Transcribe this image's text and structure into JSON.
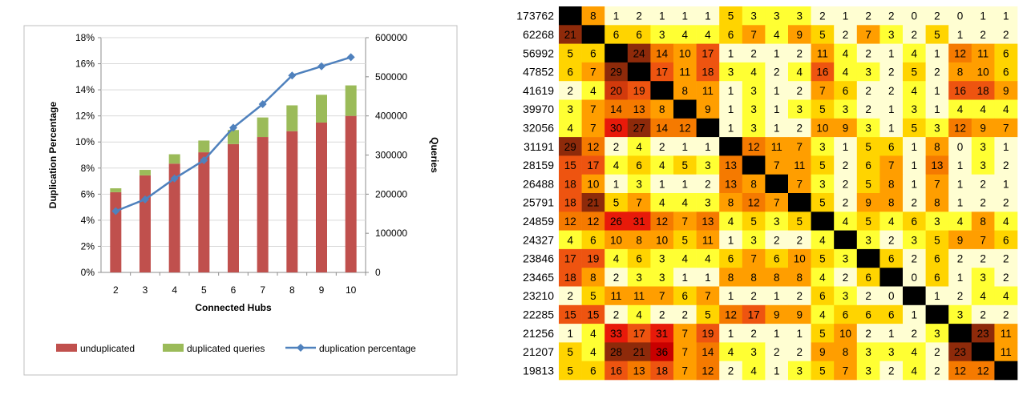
{
  "chart_data": [
    {
      "type": "bar",
      "stacked": true,
      "title": "",
      "xlabel": "Connected Hubs",
      "ylabel": "Duplication Percentage",
      "y2label": "Queries",
      "categories": [
        "2",
        "3",
        "4",
        "5",
        "6",
        "7",
        "8",
        "9",
        "10"
      ],
      "ylim": [
        0,
        0.18
      ],
      "y2lim": [
        0,
        600000
      ],
      "yticks": [
        "0%",
        "2%",
        "4%",
        "6%",
        "8%",
        "10%",
        "12%",
        "14%",
        "16%",
        "18%"
      ],
      "y2ticks": [
        "0",
        "100000",
        "200000",
        "300000",
        "400000",
        "500000",
        "600000"
      ],
      "series": [
        {
          "name": "unduplicated",
          "type": "bar",
          "axis": "right",
          "color": "#c0504d",
          "values": [
            205000,
            248000,
            278000,
            307000,
            328000,
            346000,
            361000,
            383000,
            400000
          ]
        },
        {
          "name": "duplicated queries",
          "type": "bar",
          "axis": "right",
          "color": "#9bbb59",
          "values": [
            10000,
            14000,
            24000,
            30000,
            36000,
            50000,
            66000,
            71000,
            78000
          ]
        },
        {
          "name": "duplication percentage",
          "type": "line",
          "axis": "left",
          "color": "#4f81bd",
          "values": [
            0.047,
            0.056,
            0.072,
            0.086,
            0.111,
            0.129,
            0.151,
            0.158,
            0.165
          ]
        }
      ],
      "legend": "bottom"
    },
    {
      "type": "heatmap",
      "rows": [
        "173762",
        "62268",
        "56992",
        "47852",
        "41619",
        "39970",
        "32056",
        "31191",
        "28159",
        "26488",
        "25791",
        "24859",
        "24327",
        "23846",
        "23465",
        "23210",
        "22285",
        "21256",
        "21207",
        "19813"
      ],
      "cells": [
        [
          null,
          8,
          1,
          2,
          1,
          1,
          1,
          5,
          3,
          3,
          3,
          2,
          1,
          2,
          2,
          0,
          2,
          0,
          1,
          1
        ],
        [
          21,
          null,
          6,
          6,
          3,
          4,
          4,
          6,
          7,
          4,
          9,
          5,
          2,
          7,
          3,
          2,
          5,
          1,
          2,
          2
        ],
        [
          5,
          6,
          null,
          24,
          14,
          10,
          17,
          1,
          2,
          1,
          2,
          11,
          4,
          2,
          1,
          4,
          1,
          12,
          11,
          6
        ],
        [
          6,
          7,
          29,
          null,
          17,
          11,
          18,
          3,
          4,
          2,
          4,
          16,
          4,
          3,
          2,
          5,
          2,
          8,
          10,
          6
        ],
        [
          2,
          4,
          20,
          19,
          null,
          8,
          11,
          1,
          3,
          1,
          2,
          7,
          6,
          2,
          2,
          4,
          1,
          16,
          18,
          9
        ],
        [
          3,
          7,
          14,
          13,
          8,
          null,
          9,
          1,
          3,
          1,
          3,
          5,
          3,
          2,
          1,
          3,
          1,
          4,
          4,
          4
        ],
        [
          4,
          7,
          30,
          27,
          14,
          12,
          null,
          1,
          3,
          1,
          2,
          10,
          9,
          3,
          1,
          5,
          3,
          12,
          9,
          7
        ],
        [
          29,
          12,
          2,
          4,
          2,
          1,
          1,
          null,
          12,
          11,
          7,
          3,
          1,
          5,
          6,
          1,
          8,
          0,
          3,
          1
        ],
        [
          15,
          17,
          4,
          6,
          4,
          5,
          3,
          13,
          null,
          7,
          11,
          5,
          2,
          6,
          7,
          1,
          13,
          1,
          3,
          2
        ],
        [
          18,
          10,
          1,
          3,
          1,
          1,
          2,
          13,
          8,
          null,
          7,
          3,
          2,
          5,
          8,
          1,
          7,
          1,
          2,
          1
        ],
        [
          18,
          21,
          5,
          7,
          4,
          4,
          3,
          8,
          12,
          7,
          null,
          5,
          2,
          9,
          8,
          2,
          8,
          1,
          2,
          2
        ],
        [
          12,
          12,
          26,
          31,
          12,
          7,
          13,
          4,
          5,
          3,
          5,
          null,
          4,
          5,
          4,
          6,
          3,
          4,
          8,
          4
        ],
        [
          4,
          6,
          10,
          8,
          10,
          5,
          11,
          1,
          3,
          2,
          2,
          4,
          null,
          3,
          2,
          3,
          5,
          9,
          7,
          6
        ],
        [
          17,
          19,
          4,
          6,
          3,
          4,
          4,
          6,
          7,
          6,
          10,
          5,
          3,
          null,
          6,
          2,
          6,
          2,
          2,
          2
        ],
        [
          18,
          8,
          2,
          3,
          3,
          1,
          1,
          8,
          8,
          8,
          8,
          4,
          2,
          6,
          null,
          0,
          6,
          1,
          3,
          2
        ],
        [
          2,
          5,
          11,
          11,
          7,
          6,
          7,
          1,
          2,
          1,
          2,
          6,
          3,
          2,
          0,
          null,
          1,
          2,
          4,
          4
        ],
        [
          15,
          15,
          2,
          4,
          2,
          2,
          5,
          12,
          17,
          9,
          9,
          4,
          6,
          6,
          6,
          1,
          null,
          3,
          2,
          2
        ],
        [
          1,
          4,
          33,
          17,
          31,
          7,
          19,
          1,
          2,
          1,
          1,
          5,
          10,
          2,
          1,
          2,
          3,
          null,
          23,
          11
        ],
        [
          5,
          4,
          28,
          21,
          36,
          7,
          14,
          4,
          3,
          2,
          2,
          9,
          8,
          3,
          3,
          4,
          2,
          23,
          null,
          11
        ],
        [
          5,
          6,
          16,
          13,
          18,
          7,
          12,
          2,
          4,
          1,
          3,
          5,
          7,
          3,
          2,
          4,
          2,
          12,
          12,
          null
        ]
      ]
    }
  ]
}
